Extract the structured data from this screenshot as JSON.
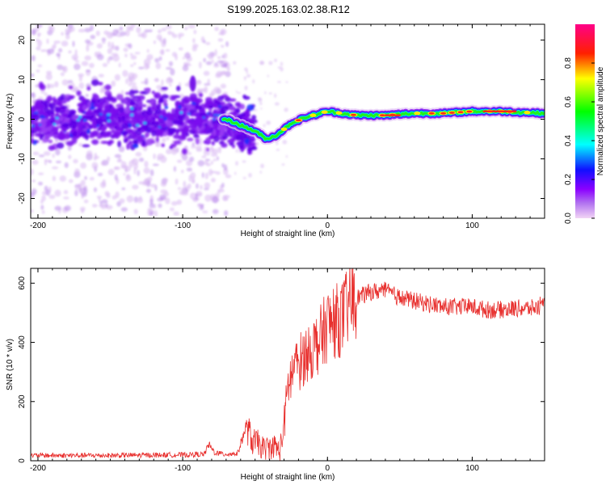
{
  "title": "S199.2025.163.02.38.R12",
  "colors": {
    "snr_line": "#e8302e",
    "axis": "#000000",
    "background": "#ffffff",
    "colorbar": [
      "#f2d5f5",
      "#8b00ff",
      "#0000ff",
      "#00ffff",
      "#00ff00",
      "#ffff00",
      "#ff0000",
      "#ff0088"
    ]
  },
  "chart_data": [
    {
      "type": "heatmap",
      "xlabel": "Height of straight line (km)",
      "ylabel": "Frequency (Hz)",
      "xlim": [
        -205,
        150
      ],
      "ylim": [
        -25,
        24
      ],
      "xticks": [
        -200,
        -100,
        0,
        100
      ],
      "yticks": [
        -20,
        -10,
        0,
        10,
        20
      ],
      "colorbar": {
        "label": "Normalized spectral amplitude",
        "range": [
          0,
          1
        ],
        "ticks": [
          "0.0",
          "0.2",
          "0.4",
          "0.6",
          "0.8"
        ]
      },
      "ridge": {
        "x": [
          -200,
          -150,
          -100,
          -70,
          -60,
          -50,
          -42,
          -35,
          -25,
          -15,
          0,
          20,
          40,
          60,
          80,
          100,
          120,
          150
        ],
        "y": [
          0,
          0.5,
          0.5,
          0,
          -1.5,
          -3,
          -5,
          -4,
          -1,
          0.5,
          2,
          1,
          1,
          1.5,
          1.5,
          2,
          2,
          1.5
        ]
      }
    },
    {
      "type": "line",
      "xlabel": "Height of straight line (km)",
      "ylabel": "SNR (10 * v/v)",
      "xlim": [
        -205,
        150
      ],
      "ylim": [
        0,
        650
      ],
      "xticks": [
        -200,
        -100,
        0,
        100
      ],
      "yticks": [
        0,
        200,
        400,
        600
      ],
      "series": [
        {
          "x": [
            -205,
            -150,
            -100,
            -85,
            -82,
            -78,
            -72,
            -62,
            -56,
            -52,
            -48,
            -44,
            -40,
            -36,
            -33,
            -30,
            -27,
            -24,
            -20,
            -15,
            -10,
            -5,
            0,
            5,
            10,
            15,
            20,
            25,
            30,
            40,
            50,
            60,
            70,
            80,
            90,
            100,
            110,
            120,
            130,
            140,
            150
          ],
          "y": [
            18,
            18,
            20,
            22,
            55,
            28,
            22,
            25,
            120,
            65,
            60,
            40,
            45,
            50,
            30,
            120,
            260,
            300,
            330,
            360,
            380,
            410,
            460,
            470,
            480,
            530,
            550,
            560,
            570,
            575,
            550,
            540,
            530,
            520,
            520,
            520,
            510,
            510,
            515,
            515,
            520
          ]
        }
      ]
    }
  ]
}
